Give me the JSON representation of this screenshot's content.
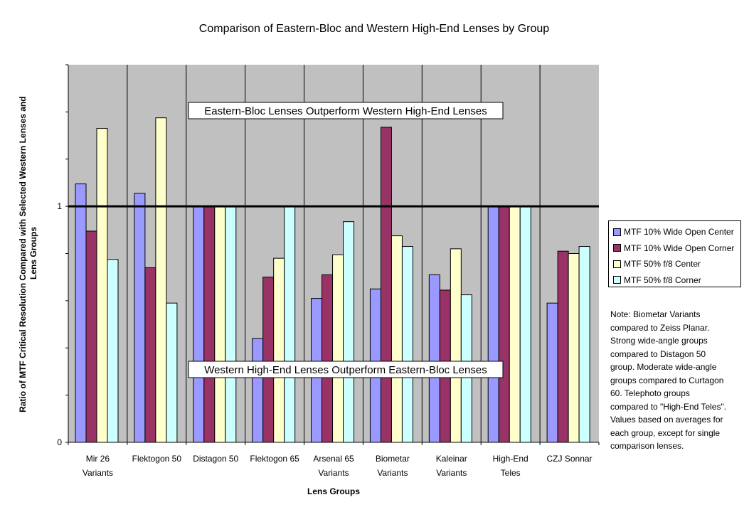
{
  "chart_data": {
    "type": "bar",
    "title": "Comparison of Eastern-Bloc and Western High-End Lenses by Group",
    "xlabel": "Lens Groups",
    "ylabel": "Ratio of MTF Critical Resolution Compared with Selected Western Lenses and Lens Groups",
    "y_tick_labels": [
      {
        "value": 0,
        "label": "0"
      },
      {
        "value": 1,
        "label": "1"
      }
    ],
    "ylim": [
      0,
      1.6
    ],
    "y_minor_ticks": [
      0.2,
      0.4,
      0.6,
      0.8,
      1.2,
      1.4,
      1.6
    ],
    "grid": false,
    "legend_position": "right",
    "reference_line": 1,
    "categories": [
      [
        "Mir 26",
        "Variants"
      ],
      [
        "Flektogon 50"
      ],
      [
        "Distagon 50"
      ],
      [
        "Flektogon 65"
      ],
      [
        "Arsenal 65",
        "Variants"
      ],
      [
        "Biometar",
        "Variants"
      ],
      [
        "Kaleinar",
        "Variants"
      ],
      [
        "High-End",
        "Teles"
      ],
      [
        "CZJ Sonnar"
      ]
    ],
    "series": [
      {
        "name": "MTF 10% Wide Open Center",
        "color": "#9999ff",
        "values": [
          1.095,
          1.055,
          1.0,
          0.44,
          0.61,
          0.65,
          0.71,
          1.0,
          0.59
        ]
      },
      {
        "name": "MTF 10% Wide Open Corner",
        "color": "#993366",
        "values": [
          0.895,
          0.74,
          1.0,
          0.7,
          0.71,
          1.335,
          0.645,
          1.0,
          0.81
        ]
      },
      {
        "name": "MTF 50% f/8 Center",
        "color": "#ffffcc",
        "values": [
          1.33,
          1.375,
          1.0,
          0.78,
          0.795,
          0.875,
          0.82,
          1.0,
          0.8
        ]
      },
      {
        "name": "MTF 50% f/8 Corner",
        "color": "#ccffff",
        "values": [
          0.775,
          0.59,
          1.0,
          1.0,
          0.935,
          0.83,
          0.625,
          1.0,
          0.83
        ]
      }
    ],
    "annotations": {
      "upper": "Eastern-Bloc Lenses Outperform Western High-End Lenses",
      "lower": "Western High-End Lenses Outperform Eastern-Bloc Lenses"
    },
    "plot_background": "#c0c0c0"
  },
  "note_text": "Note: Biometar Variants\ncompared to Zeiss Planar.\nStrong wide-angle groups\ncompared to Distagon 50\ngroup. Moderate wide-angle\ngroups compared to Curtagon\n60. Telephoto groups\ncompared to \"High-End Teles\".\nValues based on averages for\neach group, except for single\ncomparison lenses."
}
